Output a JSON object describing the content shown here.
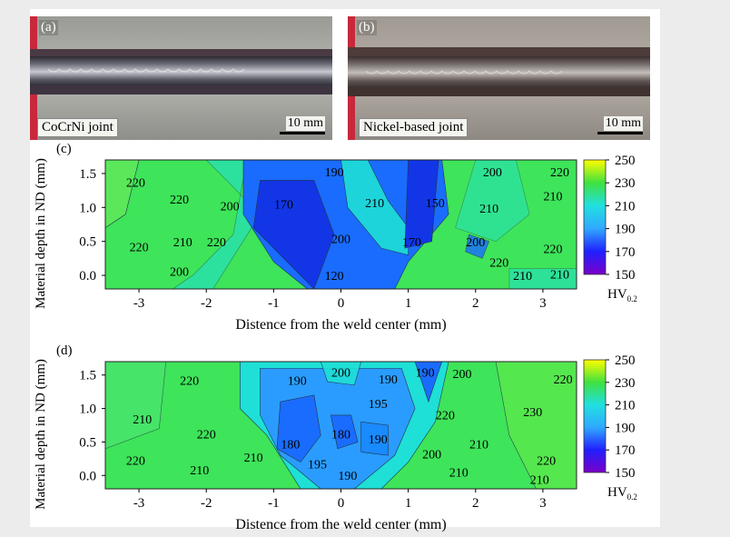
{
  "photos": [
    {
      "tag": "(a)",
      "caption": "CoCrNi joint",
      "scale": "10 mm"
    },
    {
      "tag": "(b)",
      "caption": "Nickel-based joint",
      "scale": "10 mm"
    }
  ],
  "chart_data": [
    {
      "type": "heatmap",
      "panel": "(c)",
      "xlabel": "Distence from the weld center (mm)",
      "ylabel": "Material depth in ND (mm)",
      "xlim": [
        -3.5,
        3.5
      ],
      "ylim": [
        -0.2,
        1.7
      ],
      "x_ticks": [
        -3,
        -2,
        -1,
        0,
        1,
        2,
        3
      ],
      "y_ticks": [
        0.0,
        0.5,
        1.0,
        1.5
      ],
      "colorbar": {
        "label": "HV",
        "label_sub": "0.2",
        "ticks": [
          250,
          230,
          210,
          190,
          170,
          150
        ]
      },
      "contour_labels": [
        {
          "text": "220",
          "x": -3.05,
          "y": 1.35
        },
        {
          "text": "220",
          "x": -2.4,
          "y": 1.1
        },
        {
          "text": "200",
          "x": -1.65,
          "y": 1.0
        },
        {
          "text": "170",
          "x": -0.85,
          "y": 1.03
        },
        {
          "text": "190",
          "x": -0.1,
          "y": 1.5
        },
        {
          "text": "210",
          "x": 0.5,
          "y": 1.05
        },
        {
          "text": "150",
          "x": 1.4,
          "y": 1.05
        },
        {
          "text": "200",
          "x": 2.25,
          "y": 1.5
        },
        {
          "text": "220",
          "x": 3.25,
          "y": 1.5
        },
        {
          "text": "210",
          "x": 3.15,
          "y": 1.15
        },
        {
          "text": "210",
          "x": 2.2,
          "y": 0.97
        },
        {
          "text": "220",
          "x": -3.0,
          "y": 0.4
        },
        {
          "text": "210",
          "x": -2.35,
          "y": 0.47
        },
        {
          "text": "220",
          "x": -1.85,
          "y": 0.47
        },
        {
          "text": "200",
          "x": 0.0,
          "y": 0.52
        },
        {
          "text": "170",
          "x": 1.05,
          "y": 0.47
        },
        {
          "text": "200",
          "x": 2.0,
          "y": 0.47
        },
        {
          "text": "220",
          "x": 2.35,
          "y": 0.17
        },
        {
          "text": "220",
          "x": 3.15,
          "y": 0.37
        },
        {
          "text": "200",
          "x": -2.4,
          "y": 0.04
        },
        {
          "text": "120",
          "x": -0.1,
          "y": -0.02
        },
        {
          "text": "210",
          "x": 2.7,
          "y": -0.02
        },
        {
          "text": "210",
          "x": 3.25,
          "y": 0.0
        }
      ]
    },
    {
      "type": "heatmap",
      "panel": "(d)",
      "xlabel": "Distence from the weld center (mm)",
      "ylabel": "Material depth in ND (mm)",
      "xlim": [
        -3.5,
        3.5
      ],
      "ylim": [
        -0.2,
        1.7
      ],
      "x_ticks": [
        -3,
        -2,
        -1,
        0,
        1,
        2,
        3
      ],
      "y_ticks": [
        0.0,
        0.5,
        1.0,
        1.5
      ],
      "colorbar": {
        "label": "HV",
        "label_sub": "0.2",
        "ticks": [
          250,
          230,
          210,
          190,
          170,
          150
        ]
      },
      "contour_labels": [
        {
          "text": "220",
          "x": -2.25,
          "y": 1.4
        },
        {
          "text": "210",
          "x": -2.95,
          "y": 0.82
        },
        {
          "text": "220",
          "x": -2.0,
          "y": 0.6
        },
        {
          "text": "220",
          "x": -3.05,
          "y": 0.2
        },
        {
          "text": "210",
          "x": -2.1,
          "y": 0.06
        },
        {
          "text": "210",
          "x": -1.3,
          "y": 0.25
        },
        {
          "text": "190",
          "x": -0.65,
          "y": 1.4
        },
        {
          "text": "200",
          "x": 0.0,
          "y": 1.52
        },
        {
          "text": "190",
          "x": 0.7,
          "y": 1.42
        },
        {
          "text": "190",
          "x": 1.25,
          "y": 1.52
        },
        {
          "text": "200",
          "x": 1.8,
          "y": 1.5
        },
        {
          "text": "220",
          "x": 3.3,
          "y": 1.42
        },
        {
          "text": "195",
          "x": 0.55,
          "y": 1.05
        },
        {
          "text": "220",
          "x": 1.55,
          "y": 0.88
        },
        {
          "text": "230",
          "x": 2.85,
          "y": 0.93
        },
        {
          "text": "180",
          "x": -0.75,
          "y": 0.45
        },
        {
          "text": "180",
          "x": 0.0,
          "y": 0.6
        },
        {
          "text": "190",
          "x": 0.55,
          "y": 0.52
        },
        {
          "text": "195",
          "x": -0.35,
          "y": 0.15
        },
        {
          "text": "190",
          "x": 0.1,
          "y": -0.02
        },
        {
          "text": "200",
          "x": 1.35,
          "y": 0.3
        },
        {
          "text": "210",
          "x": 2.05,
          "y": 0.45
        },
        {
          "text": "210",
          "x": 1.75,
          "y": 0.03
        },
        {
          "text": "220",
          "x": 3.05,
          "y": 0.2
        },
        {
          "text": "210",
          "x": 2.95,
          "y": -0.08
        }
      ]
    }
  ],
  "colors": {
    "colorbar_stops": [
      "#7a00c8",
      "#2020ff",
      "#30a8ff",
      "#20e0e0",
      "#40e040",
      "#ffff00"
    ],
    "green": "#3ee45a",
    "cyan": "#1ee0d6",
    "blue": "#1a6cff",
    "deep_blue": "#1236e6"
  }
}
